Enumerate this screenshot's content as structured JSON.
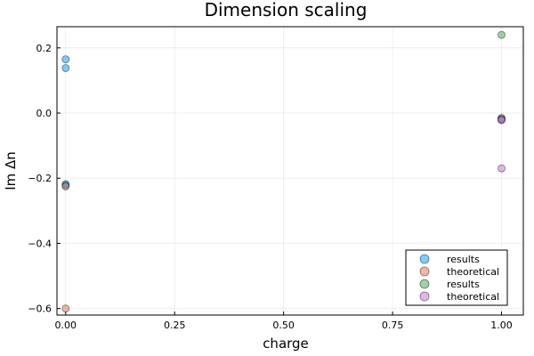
{
  "chart_data": {
    "type": "scatter",
    "title": "Dimension scaling",
    "xlabel": "charge",
    "ylabel": "Im Δn",
    "xlim": [
      -0.02,
      1.05
    ],
    "ylim": [
      -0.62,
      0.265
    ],
    "x_ticks": [
      0.0,
      0.25,
      0.5,
      0.75,
      1.0
    ],
    "x_tick_labels": [
      "0.00",
      "0.25",
      "0.50",
      "0.75",
      "1.00"
    ],
    "y_ticks": [
      -0.6,
      -0.4,
      -0.2,
      0.0,
      0.2
    ],
    "y_tick_labels": [
      "−0.6",
      "−0.4",
      "−0.2",
      "0.0",
      "0.2"
    ],
    "grid": true,
    "legend_position": "bottom-right",
    "series": [
      {
        "name": "results",
        "color": "#009AFA",
        "points": [
          [
            0,
            0.165
          ],
          [
            0,
            0.138
          ],
          [
            0,
            -0.218
          ],
          [
            0,
            -0.222
          ]
        ]
      },
      {
        "name": "theoretical",
        "color": "#E36F47",
        "points": [
          [
            0,
            -0.225
          ],
          [
            0,
            -0.6
          ]
        ]
      },
      {
        "name": "results",
        "color": "#3EA44E",
        "points": [
          [
            1,
            0.24
          ],
          [
            1,
            -0.015
          ],
          [
            1,
            -0.02
          ]
        ]
      },
      {
        "name": "theoretical",
        "color": "#C270D2",
        "points": [
          [
            1,
            -0.018
          ],
          [
            1,
            -0.022
          ],
          [
            1,
            -0.17
          ]
        ]
      }
    ]
  }
}
